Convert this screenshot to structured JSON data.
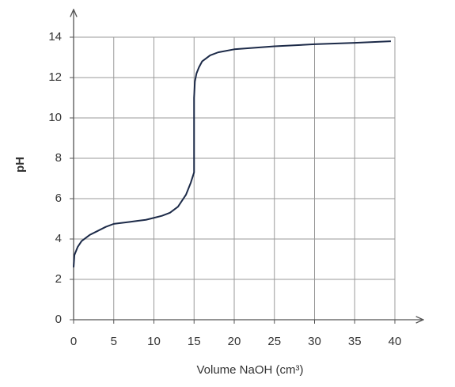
{
  "chart_data": {
    "type": "line",
    "x_label": "Volume NaOH (cm³)",
    "y_label": "pH",
    "x": [
      0,
      0.1,
      0.5,
      1,
      2,
      3,
      4,
      5,
      6,
      7,
      8,
      9,
      10,
      11,
      12,
      13,
      14,
      14.6,
      15,
      15,
      15.1,
      15.3,
      15.6,
      16,
      17,
      18,
      20,
      25,
      30,
      35,
      39.5
    ],
    "series": [
      {
        "color": "#1c2a48",
        "values": [
          2.6,
          3.2,
          3.6,
          3.9,
          4.2,
          4.4,
          4.6,
          4.75,
          4.8,
          4.85,
          4.9,
          4.95,
          5.05,
          5.15,
          5.3,
          5.6,
          6.2,
          6.8,
          7.3,
          11,
          11.8,
          12.2,
          12.5,
          12.8,
          13.1,
          13.25,
          13.4,
          13.55,
          13.65,
          13.72,
          13.8
        ]
      }
    ],
    "xlim": [
      0,
      40
    ],
    "xticks": [
      0,
      5,
      10,
      15,
      20,
      25,
      30,
      35,
      40
    ],
    "ylim": [
      0,
      14
    ],
    "yticks": [
      0,
      2,
      4,
      6,
      8,
      10,
      12,
      14
    ],
    "grid": true
  }
}
